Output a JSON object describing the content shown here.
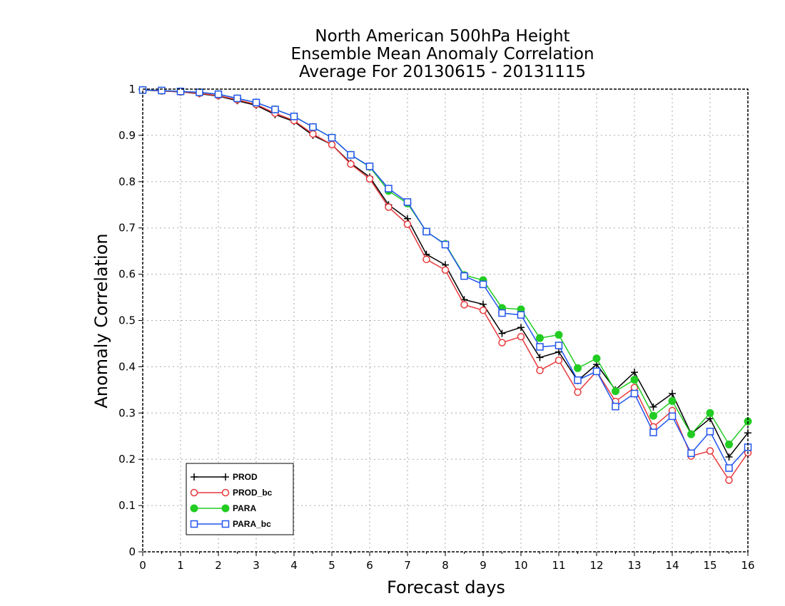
{
  "chart_data": {
    "type": "line",
    "title_lines": [
      "North American 500hPa Height",
      "Ensemble Mean Anomaly Correlation",
      "Average For 20130615 - 20131115"
    ],
    "xlabel": "Forecast days",
    "ylabel": "Anomaly Correlation",
    "xlim": [
      0,
      16
    ],
    "ylim": [
      0,
      1
    ],
    "x_ticks": [
      "0",
      "1",
      "2",
      "3",
      "4",
      "5",
      "6",
      "7",
      "8",
      "9",
      "10",
      "11",
      "12",
      "13",
      "14",
      "15",
      "16"
    ],
    "y_ticks": [
      "0",
      "0.1",
      "0.2",
      "0.3",
      "0.4",
      "0.5",
      "0.6",
      "0.7",
      "0.8",
      "0.9",
      "1"
    ],
    "grid": true,
    "legend_position": "bottom-left",
    "x": [
      0,
      0.5,
      1,
      1.5,
      2,
      2.5,
      3,
      3.5,
      4,
      4.5,
      5,
      5.5,
      6,
      6.5,
      7,
      7.5,
      8,
      8.5,
      9,
      9.5,
      10,
      10.5,
      11,
      11.5,
      12,
      12.5,
      13,
      13.5,
      14,
      14.5,
      15,
      15.5,
      16
    ],
    "series": [
      {
        "name": "PROD",
        "color": "#000000",
        "marker": "plus",
        "values": [
          0.998,
          0.996,
          0.994,
          0.99,
          0.985,
          0.975,
          0.965,
          0.945,
          0.93,
          0.9,
          0.88,
          0.84,
          0.81,
          0.75,
          0.72,
          0.643,
          0.62,
          0.545,
          0.535,
          0.472,
          0.485,
          0.42,
          0.432,
          0.37,
          0.405,
          0.35,
          0.388,
          0.313,
          0.342,
          0.255,
          0.288,
          0.205,
          0.257
        ]
      },
      {
        "name": "PROD_bc",
        "color": "#e8393c",
        "marker": "open-circle",
        "values": [
          0.998,
          0.996,
          0.994,
          0.991,
          0.986,
          0.977,
          0.967,
          0.948,
          0.932,
          0.903,
          0.88,
          0.838,
          0.806,
          0.745,
          0.708,
          0.632,
          0.609,
          0.534,
          0.522,
          0.452,
          0.465,
          0.392,
          0.414,
          0.345,
          0.39,
          0.325,
          0.355,
          0.27,
          0.305,
          0.207,
          0.218,
          0.155,
          0.214
        ]
      },
      {
        "name": "PARA",
        "color": "#22cc22",
        "marker": "filled-circle",
        "values": [
          0.998,
          0.997,
          0.995,
          0.993,
          0.989,
          0.98,
          0.971,
          0.956,
          0.941,
          0.918,
          0.895,
          0.858,
          0.832,
          0.78,
          0.753,
          0.692,
          0.665,
          0.598,
          0.587,
          0.527,
          0.524,
          0.462,
          0.469,
          0.397,
          0.418,
          0.347,
          0.372,
          0.294,
          0.326,
          0.254,
          0.3,
          0.232,
          0.282
        ]
      },
      {
        "name": "PARA_bc",
        "color": "#2255ee",
        "marker": "open-square",
        "values": [
          0.998,
          0.997,
          0.995,
          0.993,
          0.989,
          0.98,
          0.971,
          0.956,
          0.941,
          0.918,
          0.895,
          0.858,
          0.833,
          0.785,
          0.756,
          0.692,
          0.664,
          0.596,
          0.578,
          0.516,
          0.512,
          0.443,
          0.446,
          0.371,
          0.39,
          0.314,
          0.342,
          0.258,
          0.293,
          0.213,
          0.26,
          0.181,
          0.226
        ]
      }
    ]
  }
}
